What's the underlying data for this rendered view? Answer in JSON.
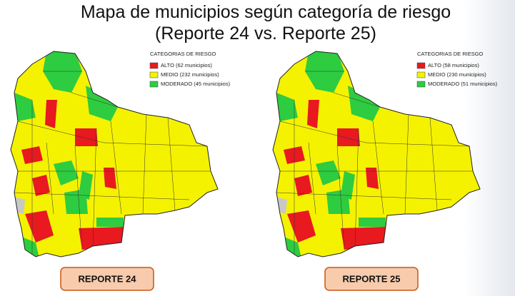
{
  "title": [
    "Mapa de municipios según categoría de riesgo",
    "(Reporte 24 vs. Reporte 25)"
  ],
  "maps": [
    {
      "legend_title": "CATEGORIAS DE RIESGO",
      "legend": [
        {
          "label": "ALTO (62 municipios)",
          "color": "#e8191f"
        },
        {
          "label": "MEDIO (232 municipios)",
          "color": "#f5f200"
        },
        {
          "label": "MODERADO (45 municipios)",
          "color": "#2ecc40"
        }
      ],
      "report": "REPORTE 24"
    },
    {
      "legend_title": "CATEGORIAS DE RIESGO",
      "legend": [
        {
          "label": "ALTO (58 municipios)",
          "color": "#e8191f"
        },
        {
          "label": "MEDIO (230 municipios)",
          "color": "#f5f200"
        },
        {
          "label": "MODERADO (51 municipios)",
          "color": "#2ecc40"
        }
      ],
      "report": "REPORTE 25"
    }
  ]
}
